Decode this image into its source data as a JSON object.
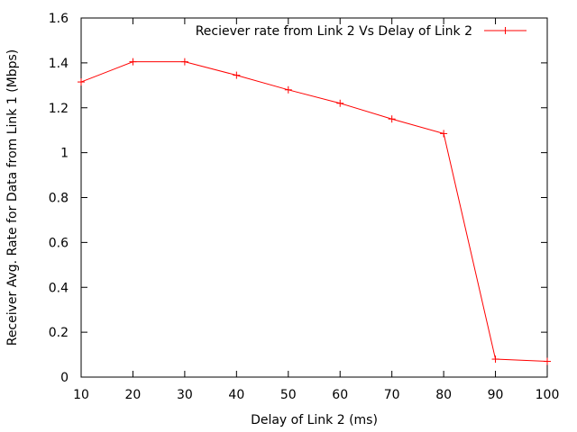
{
  "chart_data": {
    "type": "line",
    "title": "",
    "xlabel": "Delay of Link 2 (ms)",
    "ylabel": "Receiver Avg. Rate for Data from Link 1 (Mbps)",
    "xlim": [
      10,
      100
    ],
    "ylim": [
      0,
      1.6
    ],
    "xticks": [
      10,
      20,
      30,
      40,
      50,
      60,
      70,
      80,
      90,
      100
    ],
    "yticks": [
      0,
      0.2,
      0.4,
      0.6,
      0.8,
      1,
      1.2,
      1.4,
      1.6
    ],
    "xtick_labels": [
      "10",
      "20",
      "30",
      "40",
      "50",
      "60",
      "70",
      "80",
      "90",
      "100"
    ],
    "ytick_labels": [
      "0",
      "0.2",
      "0.4",
      "0.6",
      "0.8",
      "1",
      "1.2",
      "1.4",
      "1.6"
    ],
    "grid": false,
    "legend_position": "top-right",
    "series": [
      {
        "name": "Reciever rate from Link 2 Vs Delay of Link 2",
        "color": "#ff0000",
        "marker": "plus",
        "x": [
          10,
          20,
          30,
          40,
          50,
          60,
          70,
          80,
          90,
          100
        ],
        "y": [
          1.315,
          1.405,
          1.405,
          1.345,
          1.28,
          1.22,
          1.15,
          1.085,
          0.08,
          0.07
        ]
      }
    ]
  }
}
